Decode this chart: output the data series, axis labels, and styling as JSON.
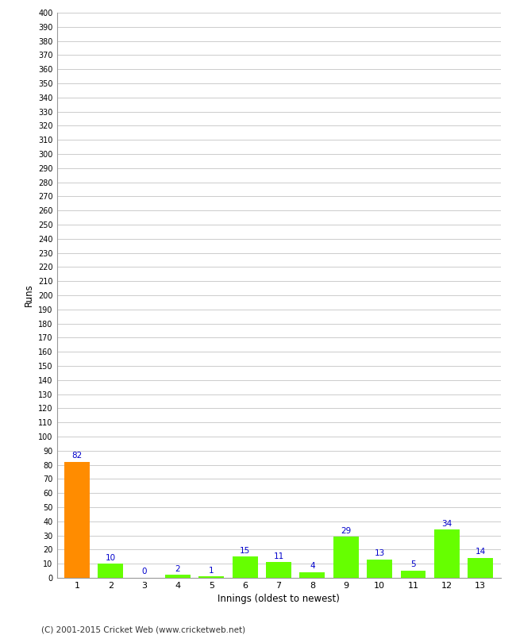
{
  "categories": [
    "1",
    "2",
    "3",
    "4",
    "5",
    "6",
    "7",
    "8",
    "9",
    "10",
    "11",
    "12",
    "13"
  ],
  "values": [
    82,
    10,
    0,
    2,
    1,
    15,
    11,
    4,
    29,
    13,
    5,
    34,
    14
  ],
  "bar_colors": [
    "#FF8C00",
    "#66FF00",
    "#66FF00",
    "#66FF00",
    "#66FF00",
    "#66FF00",
    "#66FF00",
    "#66FF00",
    "#66FF00",
    "#66FF00",
    "#66FF00",
    "#66FF00",
    "#66FF00"
  ],
  "xlabel": "Innings (oldest to newest)",
  "ylabel": "Runs",
  "ylim": [
    0,
    400
  ],
  "ytick_step": 10,
  "label_color": "#0000CC",
  "grid_color": "#CCCCCC",
  "background_color": "#FFFFFF",
  "footer": "(C) 2001-2015 Cricket Web (www.cricketweb.net)"
}
